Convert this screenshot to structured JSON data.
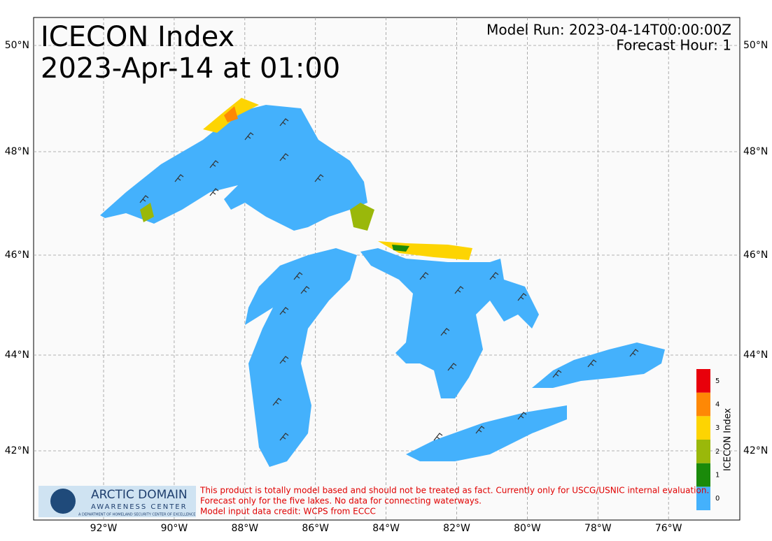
{
  "header": {
    "title_line1": "ICECON Index",
    "title_line2": "2023-Apr-14 at 01:00",
    "model_run": "Model Run: 2023-04-14T00:00:00Z",
    "forecast_hour": "Forecast Hour: 1"
  },
  "map": {
    "lat_labels": [
      "50°N",
      "48°N",
      "46°N",
      "44°N",
      "42°N"
    ],
    "lon_labels": [
      "92°W",
      "90°W",
      "88°W",
      "86°W",
      "84°W",
      "82°W",
      "80°W",
      "78°W",
      "76°W"
    ]
  },
  "legend": {
    "title": "ICECON Index",
    "levels": [
      {
        "label": "0",
        "color": "#44b1fc"
      },
      {
        "label": "1",
        "color": "#1a8a0a"
      },
      {
        "label": "2",
        "color": "#9ab80a"
      },
      {
        "label": "3",
        "color": "#fdd402"
      },
      {
        "label": "4",
        "color": "#fe8805"
      },
      {
        "label": "5",
        "color": "#e8000b"
      }
    ]
  },
  "logo": {
    "line1": "ARCTIC DOMAIN",
    "line2": "AWARENESS CENTER",
    "line3": "A DEPARTMENT OF HOMELAND SECURITY CENTER OF EXCELLENCE"
  },
  "disclaimer": [
    "This product is totally model based and should not be treated as fact. Currently only for USCG/USNIC internal evaluation.",
    "Forecast only for the five lakes. No data for connecting waterways.",
    "Model input data credit: WCPS from ECCC"
  ]
}
